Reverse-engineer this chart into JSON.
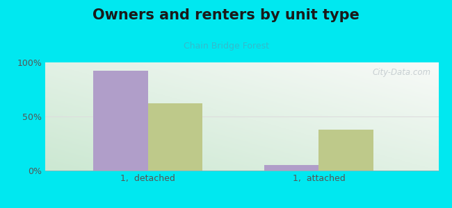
{
  "title": "Owners and renters by unit type",
  "subtitle": "Chain Bridge Forest",
  "categories": [
    "1,  detached",
    "1,  attached"
  ],
  "owner_values": [
    92,
    5
  ],
  "renter_values": [
    62,
    38
  ],
  "owner_color": "#b09ec9",
  "renter_color": "#bec98a",
  "background_outer": "#00e8f0",
  "ylim": [
    0,
    100
  ],
  "yticks": [
    0,
    50,
    100
  ],
  "ytick_labels": [
    "0%",
    "50%",
    "100%"
  ],
  "bar_width": 0.32,
  "watermark": "City-Data.com",
  "title_fontsize": 15,
  "subtitle_fontsize": 9,
  "tick_fontsize": 9
}
